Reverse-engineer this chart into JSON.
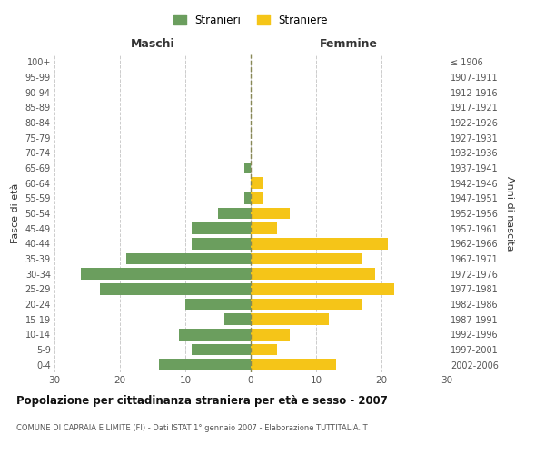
{
  "age_groups": [
    "0-4",
    "5-9",
    "10-14",
    "15-19",
    "20-24",
    "25-29",
    "30-34",
    "35-39",
    "40-44",
    "45-49",
    "50-54",
    "55-59",
    "60-64",
    "65-69",
    "70-74",
    "75-79",
    "80-84",
    "85-89",
    "90-94",
    "95-99",
    "100+"
  ],
  "birth_years": [
    "2002-2006",
    "1997-2001",
    "1992-1996",
    "1987-1991",
    "1982-1986",
    "1977-1981",
    "1972-1976",
    "1967-1971",
    "1962-1966",
    "1957-1961",
    "1952-1956",
    "1947-1951",
    "1942-1946",
    "1937-1941",
    "1932-1936",
    "1927-1931",
    "1922-1926",
    "1917-1921",
    "1912-1916",
    "1907-1911",
    "≤ 1906"
  ],
  "maschi": [
    14,
    9,
    11,
    4,
    10,
    23,
    26,
    19,
    9,
    9,
    5,
    1,
    0,
    1,
    0,
    0,
    0,
    0,
    0,
    0,
    0
  ],
  "femmine": [
    13,
    4,
    6,
    12,
    17,
    22,
    19,
    17,
    21,
    4,
    6,
    2,
    2,
    0,
    0,
    0,
    0,
    0,
    0,
    0,
    0
  ],
  "maschi_color": "#6b9e5e",
  "femmine_color": "#f5c518",
  "background_color": "#ffffff",
  "grid_color": "#cccccc",
  "title": "Popolazione per cittadinanza straniera per età e sesso - 2007",
  "subtitle": "COMUNE DI CAPRAIA E LIMITE (FI) - Dati ISTAT 1° gennaio 2007 - Elaborazione TUTTITALIA.IT",
  "xlabel_left": "Maschi",
  "xlabel_right": "Femmine",
  "ylabel_left": "Fasce di età",
  "ylabel_right": "Anni di nascita",
  "legend_maschi": "Stranieri",
  "legend_femmine": "Straniere",
  "xlim": 30
}
